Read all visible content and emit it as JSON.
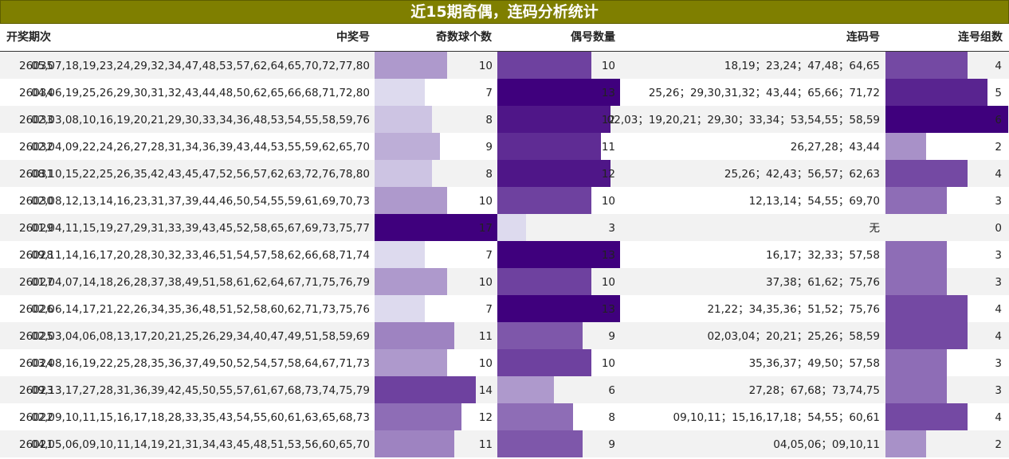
{
  "title": "近15期奇偶，连码分析统计",
  "headers": {
    "period": "开奖期次",
    "numbers": "中奖号",
    "odd": "奇数球个数",
    "even": "偶号数量",
    "consec": "连码号",
    "groups": "连号组数"
  },
  "colors": {
    "title_bg": "#7f7f00",
    "bar_low": "#dddaee",
    "bar_high": "#3f007d"
  },
  "chart_data": {
    "type": "table",
    "columns": [
      "开奖期次",
      "中奖号",
      "奇数球个数",
      "偶号数量",
      "连码号",
      "连号组数"
    ],
    "rows": [
      {
        "period": "26035",
        "numbers": "05,07,18,19,23,24,29,32,34,47,48,53,57,62,64,65,70,72,77,80",
        "odd": 10,
        "even": 10,
        "consec": "18,19；23,24；47,48；64,65",
        "groups": 4
      },
      {
        "period": "26034",
        "numbers": "04,06,19,25,26,29,30,31,32,43,44,48,50,62,65,66,68,71,72,80",
        "odd": 7,
        "even": 13,
        "consec": "25,26；29,30,31,32；43,44；65,66；71,72",
        "groups": 5
      },
      {
        "period": "26033",
        "numbers": "02,03,08,10,16,19,20,21,29,30,33,34,36,48,53,54,55,58,59,76",
        "odd": 8,
        "even": 12,
        "consec": "02,03；19,20,21；29,30；33,34；53,54,55；58,59",
        "groups": 6
      },
      {
        "period": "26032",
        "numbers": "02,04,09,22,24,26,27,28,31,34,36,39,43,44,53,55,59,62,65,70",
        "odd": 9,
        "even": 11,
        "consec": "26,27,28；43,44",
        "groups": 2
      },
      {
        "period": "26031",
        "numbers": "08,10,15,22,25,26,35,42,43,45,47,52,56,57,62,63,72,76,78,80",
        "odd": 8,
        "even": 12,
        "consec": "25,26；42,43；56,57；62,63",
        "groups": 4
      },
      {
        "period": "26030",
        "numbers": "02,08,12,13,14,16,23,31,37,39,44,46,50,54,55,59,61,69,70,73",
        "odd": 10,
        "even": 10,
        "consec": "12,13,14；54,55；69,70",
        "groups": 3
      },
      {
        "period": "26029",
        "numbers": "01,04,11,15,19,27,29,31,33,39,43,45,52,58,65,67,69,73,75,77",
        "odd": 17,
        "even": 3,
        "consec": "无",
        "groups": 0
      },
      {
        "period": "26028",
        "numbers": "09,11,14,16,17,20,28,30,32,33,46,51,54,57,58,62,66,68,71,74",
        "odd": 7,
        "even": 13,
        "consec": "16,17；32,33；57,58",
        "groups": 3
      },
      {
        "period": "26027",
        "numbers": "01,04,07,14,18,26,28,37,38,49,51,58,61,62,64,67,71,75,76,79",
        "odd": 10,
        "even": 10,
        "consec": "37,38；61,62；75,76",
        "groups": 3
      },
      {
        "period": "26026",
        "numbers": "02,06,14,17,21,22,26,34,35,36,48,51,52,58,60,62,71,73,75,76",
        "odd": 7,
        "even": 13,
        "consec": "21,22；34,35,36；51,52；75,76",
        "groups": 4
      },
      {
        "period": "26025",
        "numbers": "02,03,04,06,08,13,17,20,21,25,26,29,34,40,47,49,51,58,59,69",
        "odd": 11,
        "even": 9,
        "consec": "02,03,04；20,21；25,26；58,59",
        "groups": 4
      },
      {
        "period": "26024",
        "numbers": "03,08,16,19,22,25,28,35,36,37,49,50,52,54,57,58,64,67,71,73",
        "odd": 10,
        "even": 10,
        "consec": "35,36,37；49,50；57,58",
        "groups": 3
      },
      {
        "period": "26023",
        "numbers": "09,13,17,27,28,31,36,39,42,45,50,55,57,61,67,68,73,74,75,79",
        "odd": 14,
        "even": 6,
        "consec": "27,28；67,68；73,74,75",
        "groups": 3
      },
      {
        "period": "26022",
        "numbers": "02,09,10,11,15,16,17,18,28,33,35,43,54,55,60,61,63,65,68,73",
        "odd": 12,
        "even": 8,
        "consec": "09,10,11；15,16,17,18；54,55；60,61",
        "groups": 4
      },
      {
        "period": "26021",
        "numbers": "04,05,06,09,10,11,14,19,21,31,34,43,45,48,51,53,56,60,65,70",
        "odd": 11,
        "even": 9,
        "consec": "04,05,06；09,10,11",
        "groups": 2
      }
    ]
  }
}
